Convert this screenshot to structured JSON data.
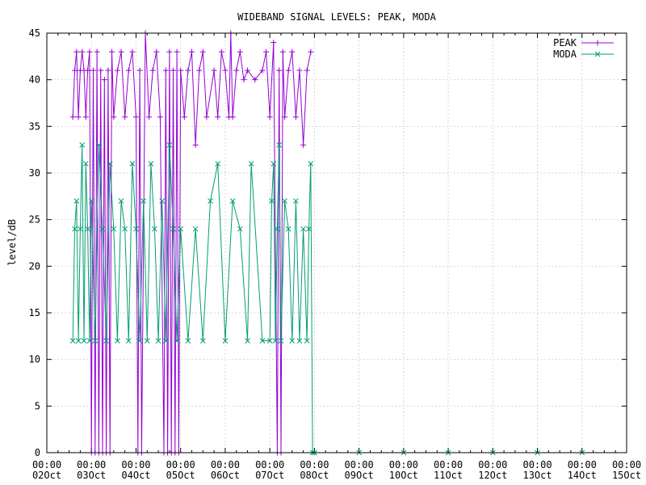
{
  "chart_data": {
    "type": "line",
    "title": "WIDEBAND SIGNAL LEVELS: PEAK, MODA",
    "xlabel": "",
    "ylabel": "level/dB",
    "xlim": [
      "2023-10-02",
      "2023-10-15"
    ],
    "ylim": [
      0,
      45
    ],
    "yticks": [
      0,
      5,
      10,
      15,
      20,
      25,
      30,
      35,
      40,
      45
    ],
    "xticks": [
      {
        "time": "00:00",
        "date": "02Oct"
      },
      {
        "time": "00:00",
        "date": "03Oct"
      },
      {
        "time": "00:00",
        "date": "04Oct"
      },
      {
        "time": "00:00",
        "date": "05Oct"
      },
      {
        "time": "00:00",
        "date": "06Oct"
      },
      {
        "time": "00:00",
        "date": "07Oct"
      },
      {
        "time": "00:00",
        "date": "08Oct"
      },
      {
        "time": "00:00",
        "date": "09Oct"
      },
      {
        "time": "00:00",
        "date": "10Oct"
      },
      {
        "time": "00:00",
        "date": "11Oct"
      },
      {
        "time": "00:00",
        "date": "12Oct"
      },
      {
        "time": "00:00",
        "date": "13Oct"
      },
      {
        "time": "00:00",
        "date": "14Oct"
      },
      {
        "time": "00:00",
        "date": "15Oct"
      }
    ],
    "grid": true,
    "legend_position": "top-right",
    "series": [
      {
        "name": "PEAK",
        "color": "#9400d3",
        "marker": "plus",
        "points": [
          [
            "2023-10-02 14:00",
            36
          ],
          [
            "2023-10-02 15:00",
            41
          ],
          [
            "2023-10-02 16:00",
            43
          ],
          [
            "2023-10-02 17:00",
            36
          ],
          [
            "2023-10-02 18:00",
            41
          ],
          [
            "2023-10-02 19:00",
            43
          ],
          [
            "2023-10-02 20:00",
            41
          ],
          [
            "2023-10-02 21:00",
            36
          ],
          [
            "2023-10-02 22:00",
            41
          ],
          [
            "2023-10-02 23:00",
            43
          ],
          [
            "2023-10-03 00:00",
            0
          ],
          [
            "2023-10-03 01:00",
            41
          ],
          [
            "2023-10-03 02:00",
            0
          ],
          [
            "2023-10-03 03:00",
            43
          ],
          [
            "2023-10-03 04:00",
            0
          ],
          [
            "2023-10-03 05:00",
            41
          ],
          [
            "2023-10-03 06:00",
            0
          ],
          [
            "2023-10-03 07:00",
            40
          ],
          [
            "2023-10-03 08:00",
            0
          ],
          [
            "2023-10-03 09:00",
            41
          ],
          [
            "2023-10-03 10:00",
            0
          ],
          [
            "2023-10-03 11:00",
            43
          ],
          [
            "2023-10-03 12:00",
            36
          ],
          [
            "2023-10-03 14:00",
            41
          ],
          [
            "2023-10-03 16:00",
            43
          ],
          [
            "2023-10-03 18:00",
            36
          ],
          [
            "2023-10-03 20:00",
            41
          ],
          [
            "2023-10-03 22:00",
            43
          ],
          [
            "2023-10-04 00:00",
            36
          ],
          [
            "2023-10-04 01:00",
            0
          ],
          [
            "2023-10-04 02:00",
            41
          ],
          [
            "2023-10-04 03:00",
            0
          ],
          [
            "2023-10-04 05:00",
            45
          ],
          [
            "2023-10-04 07:00",
            36
          ],
          [
            "2023-10-04 09:00",
            41
          ],
          [
            "2023-10-04 11:00",
            43
          ],
          [
            "2023-10-04 13:00",
            36
          ],
          [
            "2023-10-04 15:00",
            0
          ],
          [
            "2023-10-04 16:00",
            41
          ],
          [
            "2023-10-04 17:00",
            0
          ],
          [
            "2023-10-04 18:00",
            43
          ],
          [
            "2023-10-04 19:00",
            0
          ],
          [
            "2023-10-04 20:00",
            41
          ],
          [
            "2023-10-04 21:00",
            0
          ],
          [
            "2023-10-04 22:00",
            43
          ],
          [
            "2023-10-04 23:00",
            0
          ],
          [
            "2023-10-05 00:00",
            41
          ],
          [
            "2023-10-05 02:00",
            36
          ],
          [
            "2023-10-05 04:00",
            41
          ],
          [
            "2023-10-05 06:00",
            43
          ],
          [
            "2023-10-05 08:00",
            33
          ],
          [
            "2023-10-05 10:00",
            41
          ],
          [
            "2023-10-05 12:00",
            43
          ],
          [
            "2023-10-05 14:00",
            36
          ],
          [
            "2023-10-05 18:00",
            41
          ],
          [
            "2023-10-05 20:00",
            36
          ],
          [
            "2023-10-05 22:00",
            43
          ],
          [
            "2023-10-06 00:00",
            41
          ],
          [
            "2023-10-06 02:00",
            36
          ],
          [
            "2023-10-06 03:00",
            45
          ],
          [
            "2023-10-06 04:00",
            36
          ],
          [
            "2023-10-06 06:00",
            41
          ],
          [
            "2023-10-06 08:00",
            43
          ],
          [
            "2023-10-06 10:00",
            40
          ],
          [
            "2023-10-06 12:00",
            41
          ],
          [
            "2023-10-06 16:00",
            40
          ],
          [
            "2023-10-06 20:00",
            41
          ],
          [
            "2023-10-06 22:00",
            43
          ],
          [
            "2023-10-07 00:00",
            36
          ],
          [
            "2023-10-07 02:00",
            44
          ],
          [
            "2023-10-07 04:00",
            0
          ],
          [
            "2023-10-07 05:00",
            41
          ],
          [
            "2023-10-07 06:00",
            0
          ],
          [
            "2023-10-07 07:00",
            43
          ],
          [
            "2023-10-07 08:00",
            36
          ],
          [
            "2023-10-07 10:00",
            41
          ],
          [
            "2023-10-07 12:00",
            43
          ],
          [
            "2023-10-07 14:00",
            36
          ],
          [
            "2023-10-07 16:00",
            41
          ],
          [
            "2023-10-07 18:00",
            33
          ],
          [
            "2023-10-07 20:00",
            41
          ],
          [
            "2023-10-07 22:00",
            43
          ]
        ]
      },
      {
        "name": "MODA",
        "color": "#009e73",
        "marker": "cross",
        "points": [
          [
            "2023-10-02 14:00",
            12
          ],
          [
            "2023-10-02 15:00",
            24
          ],
          [
            "2023-10-02 16:00",
            27
          ],
          [
            "2023-10-02 17:00",
            12
          ],
          [
            "2023-10-02 18:00",
            24
          ],
          [
            "2023-10-02 19:00",
            33
          ],
          [
            "2023-10-02 20:00",
            12
          ],
          [
            "2023-10-02 21:00",
            31
          ],
          [
            "2023-10-02 22:00",
            24
          ],
          [
            "2023-10-02 23:00",
            12
          ],
          [
            "2023-10-03 00:00",
            27
          ],
          [
            "2023-10-03 02:00",
            12
          ],
          [
            "2023-10-03 04:00",
            33
          ],
          [
            "2023-10-03 06:00",
            24
          ],
          [
            "2023-10-03 08:00",
            12
          ],
          [
            "2023-10-03 10:00",
            31
          ],
          [
            "2023-10-03 12:00",
            24
          ],
          [
            "2023-10-03 14:00",
            12
          ],
          [
            "2023-10-03 16:00",
            27
          ],
          [
            "2023-10-03 18:00",
            24
          ],
          [
            "2023-10-03 20:00",
            12
          ],
          [
            "2023-10-03 22:00",
            31
          ],
          [
            "2023-10-04 00:00",
            24
          ],
          [
            "2023-10-04 02:00",
            12
          ],
          [
            "2023-10-04 04:00",
            27
          ],
          [
            "2023-10-04 06:00",
            12
          ],
          [
            "2023-10-04 08:00",
            31
          ],
          [
            "2023-10-04 10:00",
            24
          ],
          [
            "2023-10-04 12:00",
            12
          ],
          [
            "2023-10-04 14:00",
            27
          ],
          [
            "2023-10-04 16:00",
            12
          ],
          [
            "2023-10-04 18:00",
            33
          ],
          [
            "2023-10-04 20:00",
            24
          ],
          [
            "2023-10-04 22:00",
            12
          ],
          [
            "2023-10-05 00:00",
            24
          ],
          [
            "2023-10-05 04:00",
            12
          ],
          [
            "2023-10-05 08:00",
            24
          ],
          [
            "2023-10-05 12:00",
            12
          ],
          [
            "2023-10-05 16:00",
            27
          ],
          [
            "2023-10-05 20:00",
            31
          ],
          [
            "2023-10-06 00:00",
            12
          ],
          [
            "2023-10-06 04:00",
            27
          ],
          [
            "2023-10-06 08:00",
            24
          ],
          [
            "2023-10-06 12:00",
            12
          ],
          [
            "2023-10-06 14:00",
            31
          ],
          [
            "2023-10-06 20:00",
            12
          ],
          [
            "2023-10-07 00:00",
            12
          ],
          [
            "2023-10-07 01:00",
            27
          ],
          [
            "2023-10-07 02:00",
            31
          ],
          [
            "2023-10-07 03:00",
            12
          ],
          [
            "2023-10-07 04:00",
            24
          ],
          [
            "2023-10-07 05:00",
            33
          ],
          [
            "2023-10-07 06:00",
            12
          ],
          [
            "2023-10-07 08:00",
            27
          ],
          [
            "2023-10-07 10:00",
            24
          ],
          [
            "2023-10-07 12:00",
            12
          ],
          [
            "2023-10-07 14:00",
            27
          ],
          [
            "2023-10-07 16:00",
            12
          ],
          [
            "2023-10-07 18:00",
            24
          ],
          [
            "2023-10-07 20:00",
            12
          ],
          [
            "2023-10-07 21:00",
            24
          ],
          [
            "2023-10-07 22:00",
            31
          ],
          [
            "2023-10-07 23:00",
            0
          ],
          [
            "2023-10-08 00:00",
            0
          ],
          [
            "2023-10-09 00:00",
            0
          ],
          [
            "2023-10-10 00:00",
            0
          ],
          [
            "2023-10-11 00:00",
            0
          ],
          [
            "2023-10-12 00:00",
            0
          ],
          [
            "2023-10-13 00:00",
            0
          ],
          [
            "2023-10-14 00:00",
            0
          ]
        ]
      }
    ]
  }
}
